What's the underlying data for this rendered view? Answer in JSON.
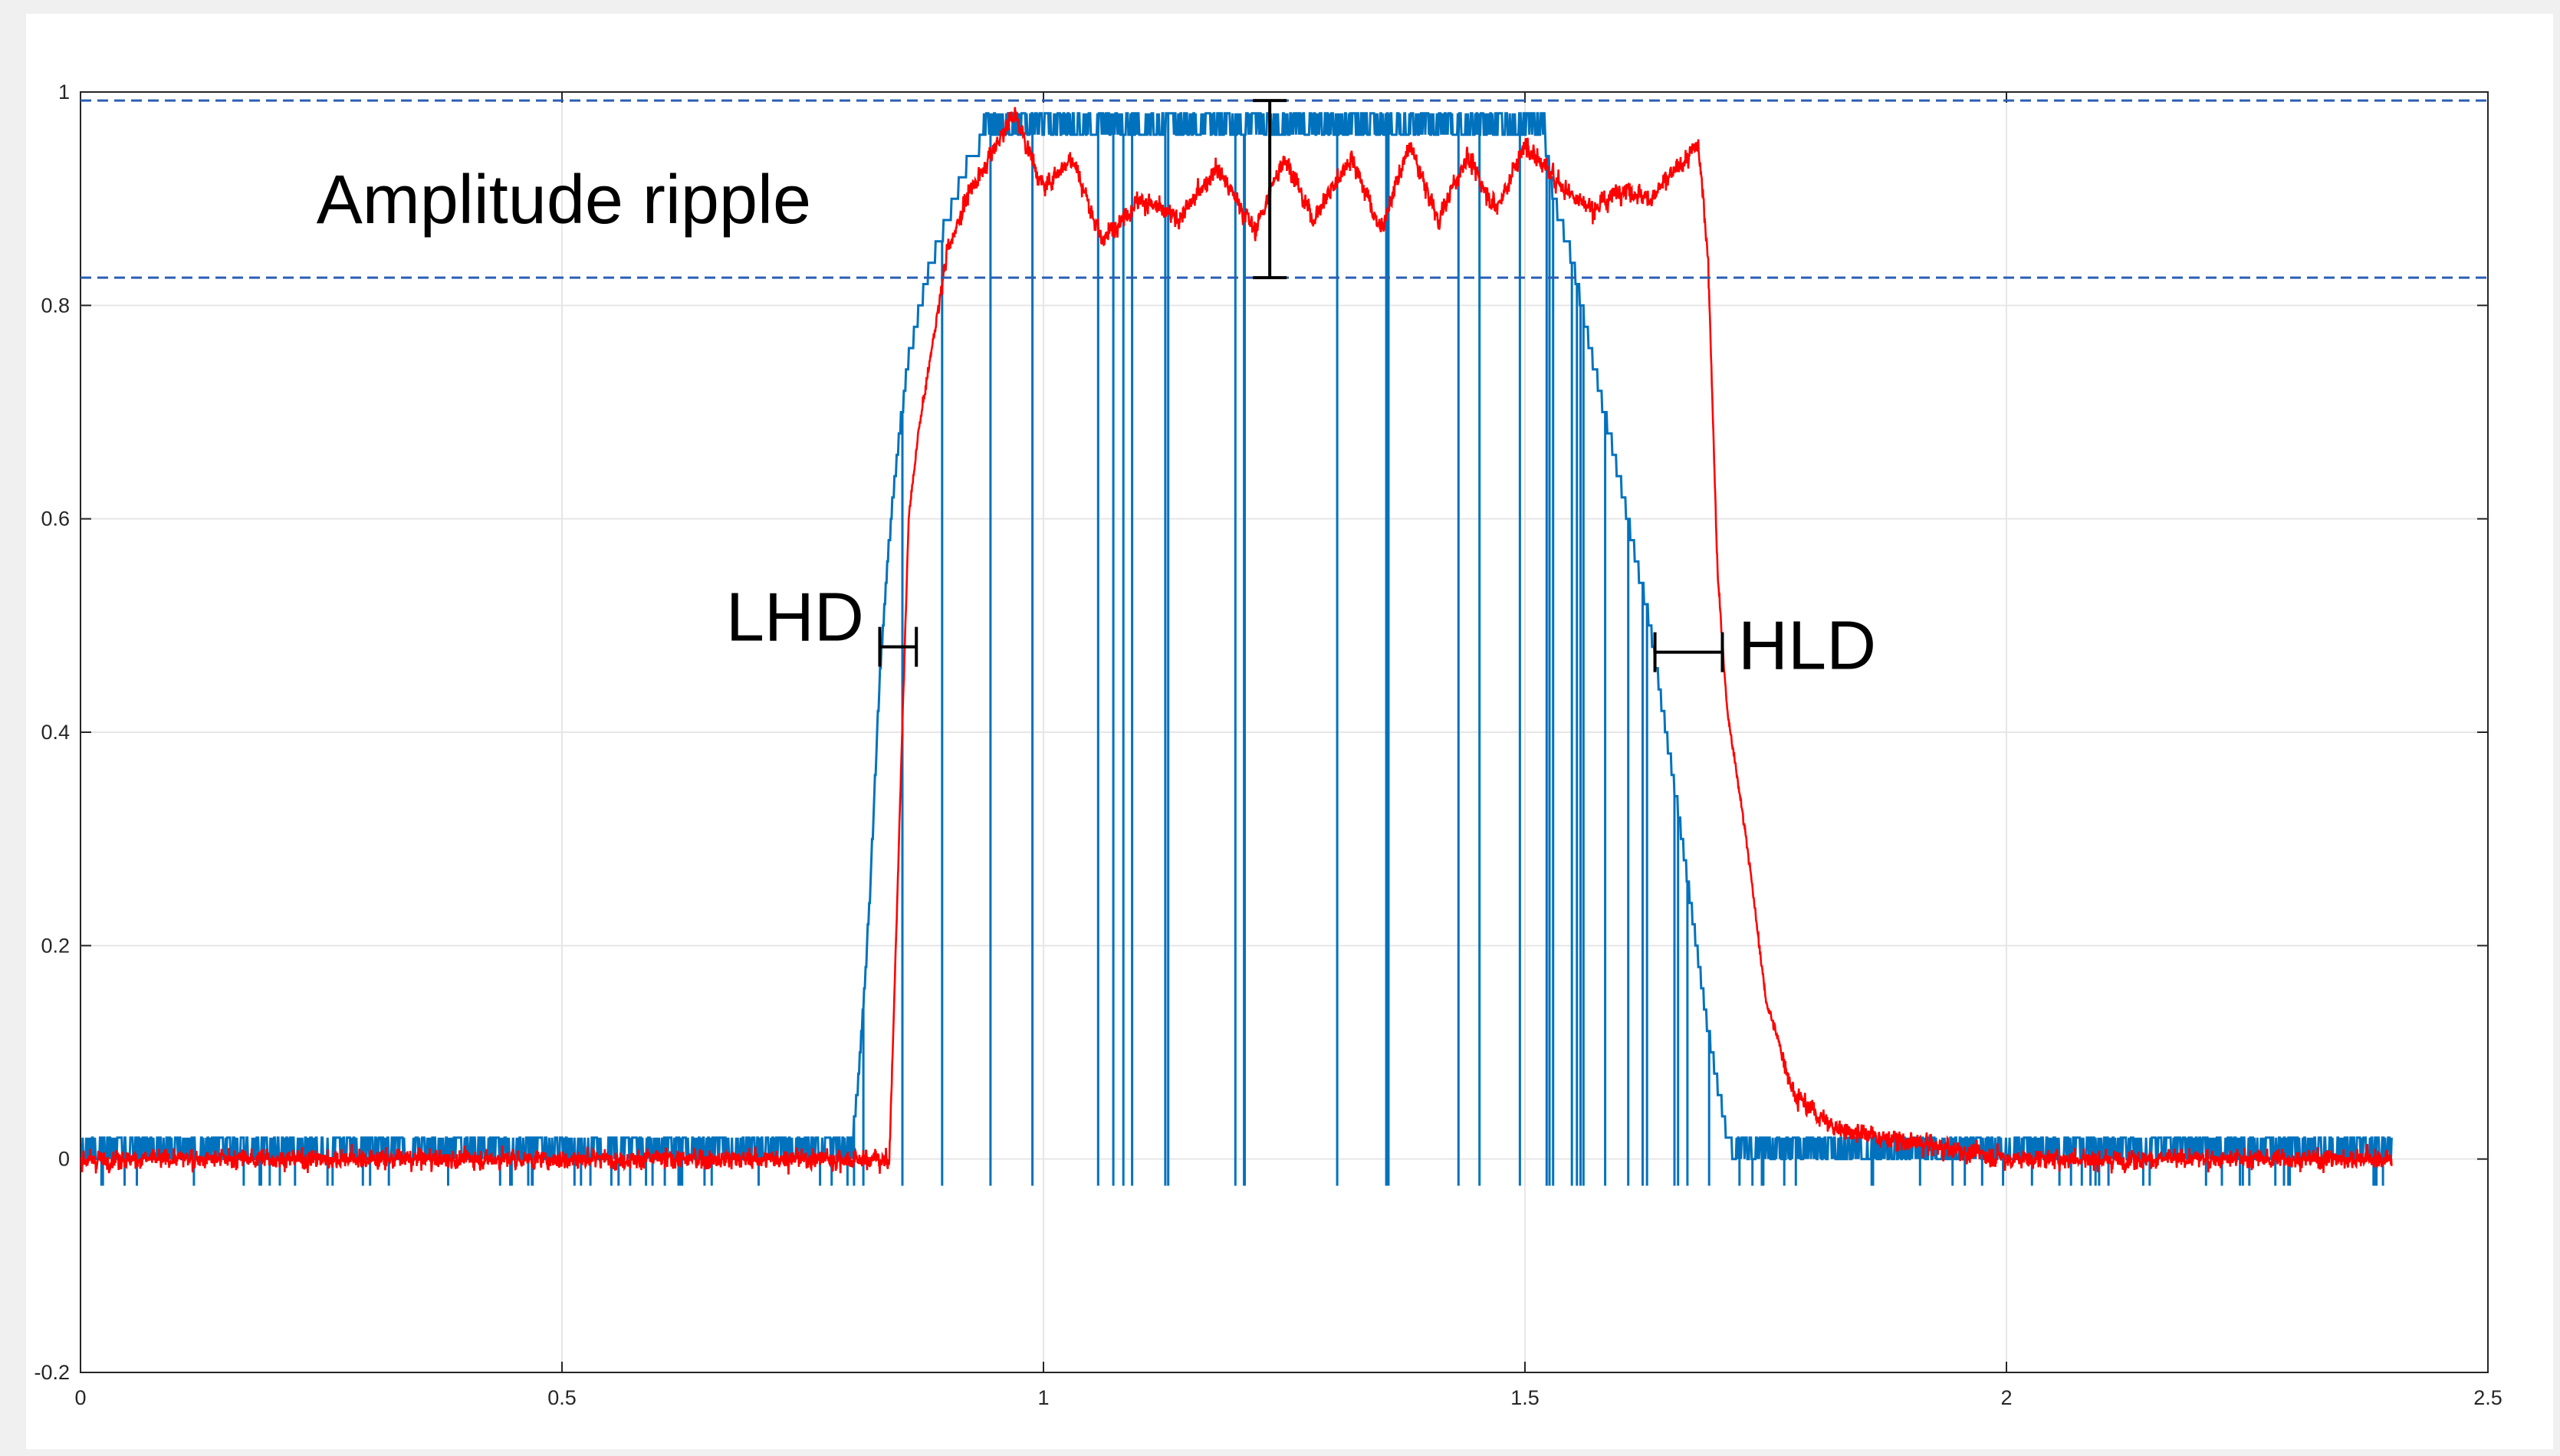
{
  "chart_data": {
    "type": "line",
    "title": "",
    "xlabel": "",
    "ylabel": "",
    "xlim": [
      0,
      2.5
    ],
    "ylim": [
      -0.2,
      1
    ],
    "x_ticks": [
      0,
      0.5,
      1,
      1.5,
      2,
      2.5
    ],
    "y_ticks": [
      -0.2,
      0,
      0.2,
      0.4,
      0.6,
      0.8,
      1
    ],
    "x_tick_labels": [
      "0",
      "0.5",
      "1",
      "1.5",
      "2",
      "2.5"
    ],
    "y_tick_labels": [
      "-0.2",
      "0",
      "0.2",
      "0.4",
      "0.6",
      "0.8",
      "1"
    ],
    "grid": true,
    "colors": {
      "blue": "#0072bd",
      "red": "#ff0000",
      "reference": "#2b5fb4",
      "annotation": "#000000"
    },
    "series": [
      {
        "color": "#0072bd",
        "style": "quantized-step",
        "x": [
          0,
          0.8,
          0.81,
          0.82,
          0.83,
          0.84,
          0.85,
          0.86,
          0.87,
          0.88,
          0.9,
          0.92,
          0.94,
          1.52,
          1.53,
          1.55,
          1.57,
          1.6,
          1.63,
          1.66,
          1.69,
          1.71,
          1.72,
          2.4
        ],
        "y": [
          0,
          0,
          0.1,
          0.25,
          0.45,
          0.58,
          0.68,
          0.75,
          0.79,
          0.83,
          0.88,
          0.93,
          0.96,
          0.96,
          0.9,
          0.84,
          0.75,
          0.63,
          0.5,
          0.32,
          0.12,
          0.02,
          0,
          0
        ]
      },
      {
        "color": "#ff0000",
        "style": "noisy",
        "x": [
          0,
          0.84,
          0.85,
          0.86,
          0.87,
          0.9,
          0.92,
          0.95,
          0.97,
          1.0,
          1.03,
          1.06,
          1.1,
          1.14,
          1.18,
          1.22,
          1.25,
          1.28,
          1.32,
          1.35,
          1.38,
          1.41,
          1.44,
          1.47,
          1.5,
          1.54,
          1.57,
          1.6,
          1.63,
          1.66,
          1.68,
          1.69,
          1.7,
          1.71,
          1.73,
          1.75,
          1.78,
          1.82,
          1.87,
          2.0,
          2.4
        ],
        "y": [
          0,
          0,
          0.3,
          0.6,
          0.68,
          0.85,
          0.9,
          0.95,
          0.98,
          0.91,
          0.94,
          0.86,
          0.9,
          0.88,
          0.93,
          0.87,
          0.94,
          0.88,
          0.94,
          0.87,
          0.95,
          0.88,
          0.94,
          0.89,
          0.95,
          0.91,
          0.89,
          0.91,
          0.9,
          0.93,
          0.95,
          0.85,
          0.55,
          0.42,
          0.3,
          0.15,
          0.06,
          0.03,
          0.02,
          0,
          0
        ]
      }
    ],
    "reference_lines": [
      {
        "y": 0.992,
        "style": "dashed"
      },
      {
        "y": 0.826,
        "style": "dashed"
      }
    ],
    "annotations": [
      {
        "text": "Amplitude ripple",
        "marker": "vertical-span",
        "x": 1.235,
        "y_range": [
          0.826,
          0.992
        ]
      },
      {
        "text": "LHD",
        "marker": "horizontal-span",
        "y": 0.48,
        "x_range": [
          0.83,
          0.868
        ]
      },
      {
        "text": "HLD",
        "marker": "horizontal-span",
        "y": 0.475,
        "x_range": [
          1.635,
          1.705
        ]
      }
    ]
  }
}
